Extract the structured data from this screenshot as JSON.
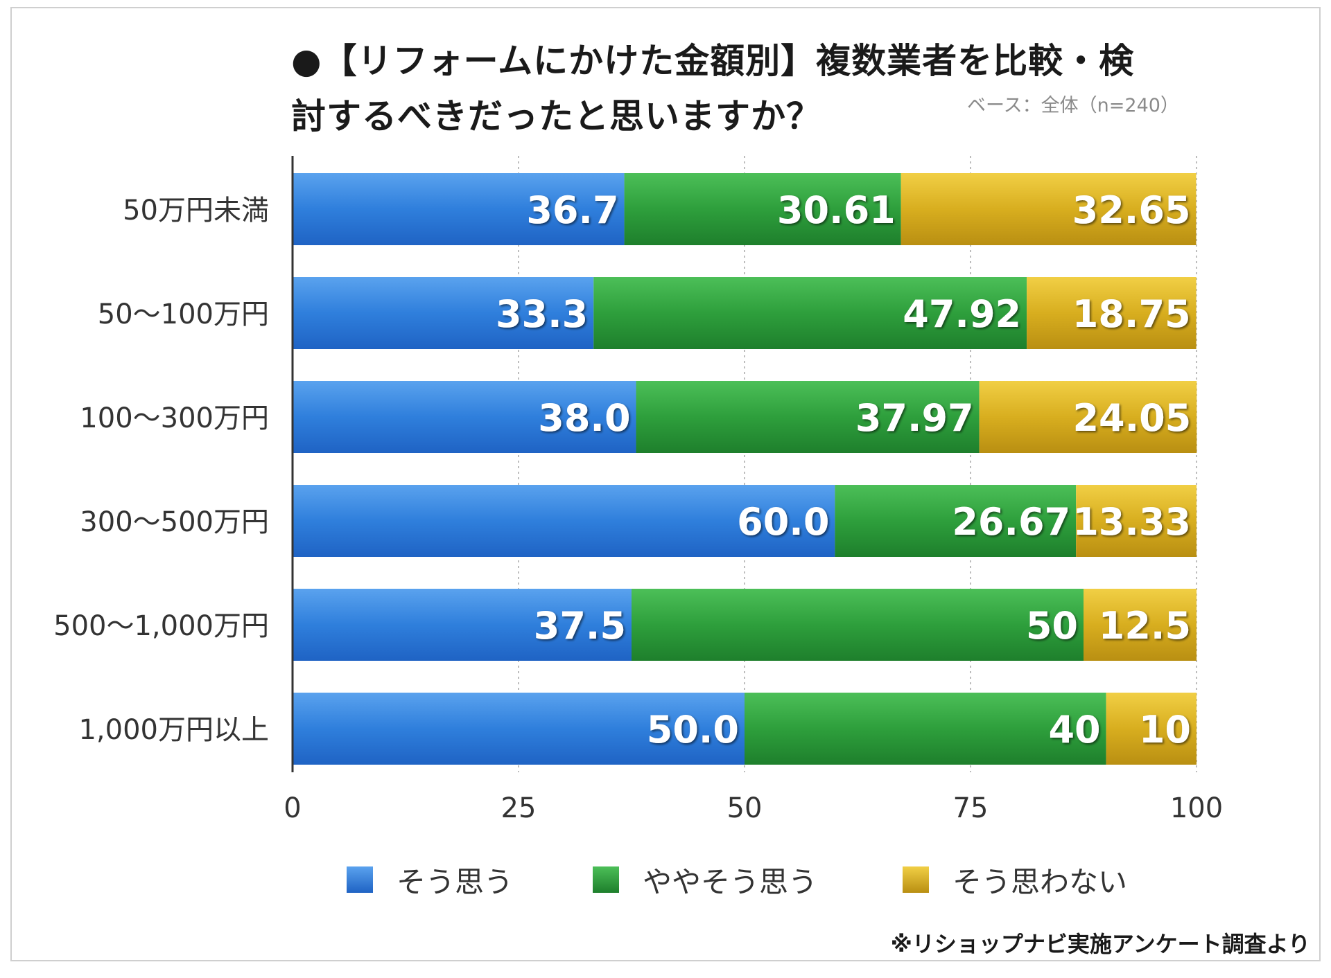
{
  "title_line1": "●【リフォームにかけた金額別】複数業者を比較・検",
  "title_line2": "討するべきだったと思いますか？",
  "base_note": "ベース：全体（n=240）",
  "source_note": "※リショップナビ実施アンケート調査より",
  "colors": {
    "series1": "#2f7fdc",
    "series2": "#2e9f3c",
    "series3": "#d8ae1f",
    "grid": "#bdbdbd",
    "axis": "#333333"
  },
  "chart_data": {
    "type": "bar",
    "orientation": "horizontal",
    "stacked": true,
    "title": "【リフォームにかけた金額別】複数業者を比較・検討するべきだったと思いますか？",
    "categories": [
      "50万円未満",
      "50〜100万円",
      "100〜300万円",
      "300〜500万円",
      "500〜1,000万円",
      "1,000万円以上"
    ],
    "series": [
      {
        "name": "そう思う",
        "values": [
          36.7,
          33.3,
          38.0,
          60.0,
          37.5,
          50.0
        ],
        "labels": [
          "36.7",
          "33.3",
          "38.0",
          "60.0",
          "37.5",
          "50.0"
        ]
      },
      {
        "name": "ややそう思う",
        "values": [
          30.61,
          47.92,
          37.97,
          26.67,
          50,
          40
        ],
        "labels": [
          "30.61",
          "47.92",
          "37.97",
          "26.67",
          "50",
          "40"
        ]
      },
      {
        "name": "そう思わない",
        "values": [
          32.65,
          18.75,
          24.05,
          13.33,
          12.5,
          10
        ],
        "labels": [
          "32.65",
          "18.75",
          "24.05",
          "13.33",
          "12.5",
          "10"
        ]
      }
    ],
    "xlim": [
      0,
      100
    ],
    "xticks": [
      "0",
      "25",
      "50",
      "75",
      "100"
    ],
    "grid": true,
    "legend_position": "bottom"
  }
}
